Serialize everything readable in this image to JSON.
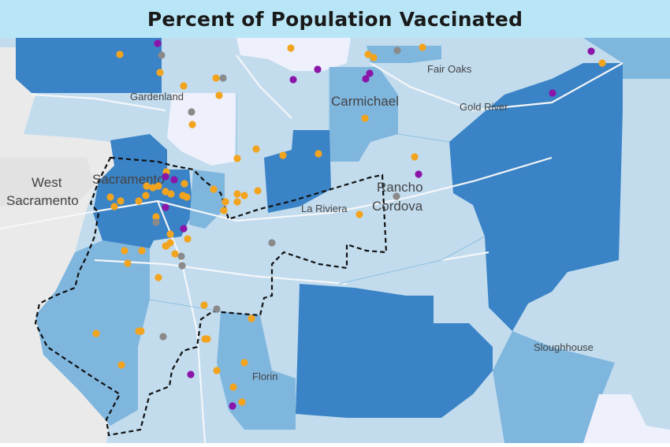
{
  "title": "Percent of Population Vaccinated",
  "colors": {
    "title_bg": "#b9e6f7",
    "land_light": "#dbe6ec",
    "background_gray": "#eaeaea",
    "tier_palest": "#eef0fb",
    "tier_light": "#c2dcee",
    "tier_mid": "#7fb6de",
    "tier_dark": "#3a83c6",
    "dot_orange": "#f2a41e",
    "dot_purple": "#8a15a8",
    "dot_gray": "#8a8a8a",
    "boundary": "#111111"
  },
  "labels": {
    "west_sacramento_1": "West",
    "west_sacramento_2": "Sacramento",
    "sacramento": "Sacramento",
    "gardenland": "Gardenland",
    "carmichael": "Carmichael",
    "fair_oaks": "Fair Oaks",
    "gold_river": "Gold River",
    "rancho_cordova_1": "Rancho",
    "rancho_cordova_2": "Cordova",
    "la_riviera": "La Riviera",
    "sloughhouse": "Sloughhouse",
    "florin": "Florin"
  },
  "legend_meaning": {
    "orange": "site",
    "purple": "site",
    "gray": "site"
  }
}
